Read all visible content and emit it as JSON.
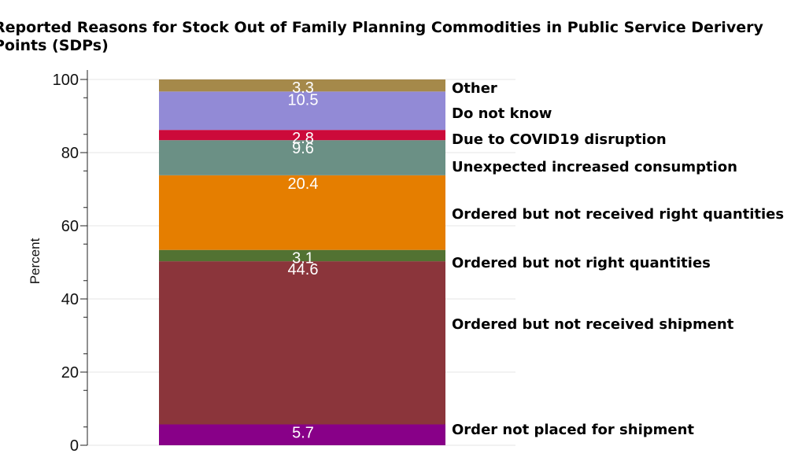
{
  "chart_data": {
    "type": "bar",
    "stacked": true,
    "title": "Reported Reasons for Stock Out of Family Planning Commodities in Public Service Derivery Points (SDPs)",
    "ylabel": "Percent",
    "xlabel": "",
    "ylim": [
      0,
      100
    ],
    "yticks": [
      0,
      20,
      40,
      60,
      80,
      100
    ],
    "grid": true,
    "categories": [
      ""
    ],
    "series": [
      {
        "name": "Order not placed for shipment",
        "value": 5.7,
        "label": "5.7",
        "color": "#880088"
      },
      {
        "name": "Ordered but not received shipment",
        "value": 44.6,
        "label": "44.6",
        "color": "#8b353b"
      },
      {
        "name": "Ordered but not right quantities",
        "value": 3.1,
        "label": "3.1",
        "color": "#527232"
      },
      {
        "name": "Ordered but not received right quantities",
        "value": 20.4,
        "label": "20.4",
        "color": "#e57e00"
      },
      {
        "name": "Unexpected increased consumption",
        "value": 9.6,
        "label": "9.6",
        "color": "#6b9085"
      },
      {
        "name": "Due to COVID19 disruption",
        "value": 2.8,
        "label": "2.8",
        "color": "#cc0a3a"
      },
      {
        "name": "Do not know",
        "value": 10.5,
        "label": "10.5",
        "color": "#928ad6"
      },
      {
        "name": "Other",
        "value": 3.3,
        "label": "3.3",
        "color": "#a5894a"
      }
    ]
  }
}
